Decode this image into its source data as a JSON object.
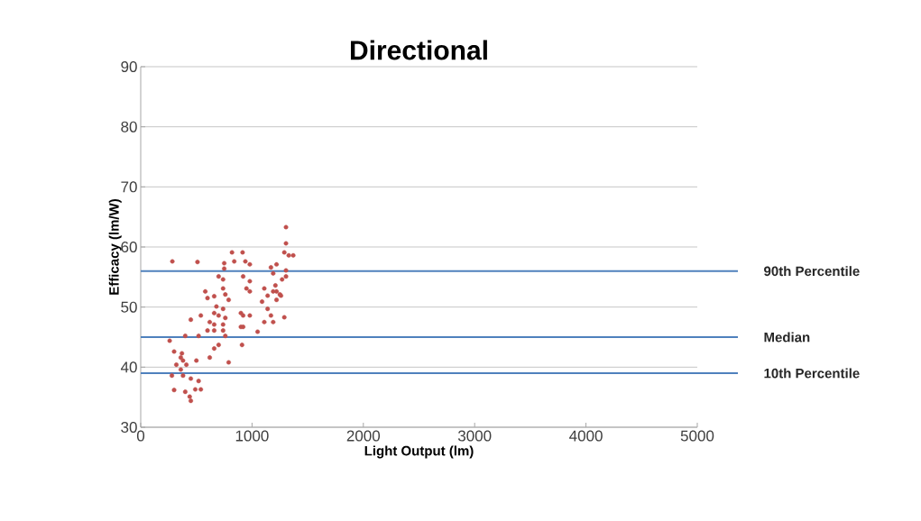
{
  "chart_data": {
    "type": "scatter",
    "title": "Directional",
    "xlabel": "Light Output (lm)",
    "ylabel": "Efficacy (lm/W)",
    "xlim": [
      0,
      5000
    ],
    "xticks": [
      0,
      1000,
      2000,
      3000,
      4000,
      5000
    ],
    "ylim": [
      30,
      90
    ],
    "yticks": [
      30,
      40,
      50,
      60,
      70,
      80,
      90
    ],
    "grid": "y",
    "marker": "circle",
    "series": [
      {
        "color": "#c0504d",
        "x": [
          284,
          510,
          1305,
          1305,
          1290,
          1330,
          1370,
          820,
          915,
          840,
          940,
          750,
          750,
          980,
          920,
          980,
          1170,
          1220,
          1190,
          1305,
          1305,
          1270,
          700,
          740,
          740,
          760,
          790,
          580,
          600,
          660,
          680,
          740,
          700,
          760,
          740,
          740,
          760,
          660,
          620,
          660,
          980,
          950,
          900,
          920,
          980,
          920,
          900,
          910,
          790,
          1110,
          1140,
          1190,
          1220,
          1250,
          1090,
          1140,
          1170,
          1190,
          1110,
          1050,
          1290,
          1220,
          1260,
          1210,
          450,
          540,
          400,
          520,
          600,
          660,
          620,
          660,
          700,
          260,
          300,
          370,
          380,
          500,
          320,
          360,
          380,
          450,
          520,
          490,
          280,
          300,
          400,
          440,
          450,
          540,
          360,
          410
        ],
        "values": [
          57.6,
          57.5,
          63.3,
          60.6,
          59.1,
          58.6,
          58.6,
          59.1,
          59.1,
          57.6,
          57.6,
          57.3,
          56.4,
          57.1,
          55.1,
          54.3,
          56.6,
          57.1,
          55.6,
          56.1,
          55.1,
          54.6,
          55.1,
          54.6,
          53.1,
          52.1,
          51.2,
          52.6,
          51.5,
          51.8,
          50.1,
          49.7,
          48.6,
          48.2,
          47.1,
          46.1,
          45.2,
          49.0,
          47.5,
          46.1,
          52.6,
          53.1,
          49.0,
          48.6,
          48.6,
          46.7,
          46.7,
          43.7,
          40.8,
          53.1,
          51.9,
          52.6,
          51.2,
          52.1,
          50.9,
          49.7,
          48.6,
          47.5,
          47.5,
          45.9,
          48.3,
          52.6,
          51.9,
          53.6,
          47.9,
          48.6,
          45.2,
          45.2,
          46.1,
          47.1,
          41.6,
          43.1,
          43.7,
          44.4,
          42.6,
          42.3,
          41.1,
          41.1,
          40.4,
          39.6,
          38.6,
          38.1,
          37.7,
          36.3,
          38.6,
          36.2,
          35.9,
          35.1,
          34.4,
          36.3,
          41.6,
          40.4
        ]
      }
    ],
    "ref_lines": [
      {
        "axis": "y",
        "value": 56,
        "label": "90th Percentile",
        "color": "#4f81bd"
      },
      {
        "axis": "y",
        "value": 45,
        "label": "Median",
        "color": "#4f81bd"
      },
      {
        "axis": "y",
        "value": 39,
        "label": "10th Percentile",
        "color": "#4f81bd"
      }
    ]
  }
}
